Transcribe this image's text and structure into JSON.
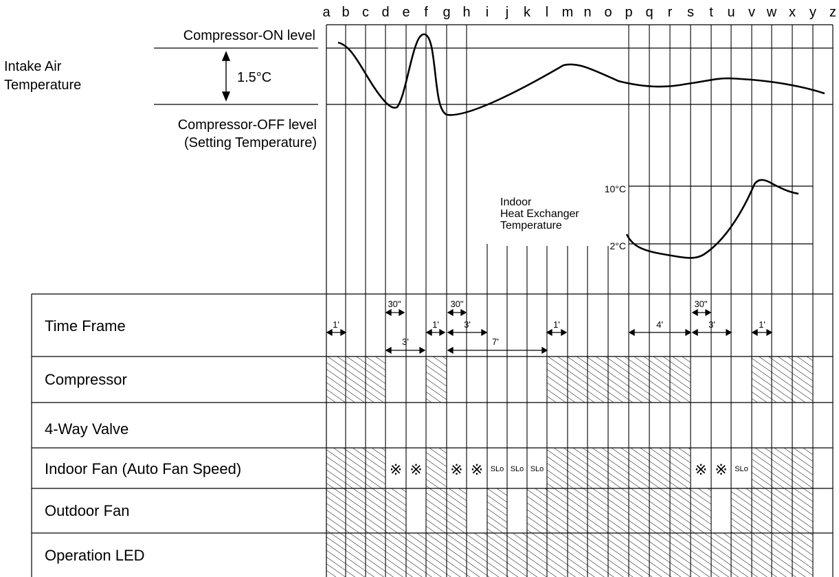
{
  "columns": [
    "a",
    "b",
    "c",
    "d",
    "e",
    "f",
    "g",
    "h",
    "i",
    "j",
    "k",
    "l",
    "m",
    "n",
    "o",
    "p",
    "q",
    "r",
    "s",
    "t",
    "u",
    "v",
    "w",
    "x",
    "y",
    "z"
  ],
  "intake": {
    "title_line1": "Intake Air",
    "title_line2": "Temperature",
    "on_level": "Compressor-ON level",
    "delta": "1.5°C",
    "off_level_line1": "Compressor-OFF level",
    "off_level_line2": "(Setting Temperature)"
  },
  "heat_exchanger": {
    "line1": "Indoor",
    "line2": "Heat Exchanger",
    "line3": "Temperature",
    "high": "10°C",
    "low": "2°C"
  },
  "rows": {
    "time_frame": "Time Frame",
    "compressor": "Compressor",
    "four_way_valve": "4-Way Valve",
    "indoor_fan": "Indoor Fan (Auto Fan Speed)",
    "outdoor_fan": "Outdoor Fan",
    "operation_led": "Operation LED"
  },
  "time_labels": {
    "t1": "1'",
    "t2": "30\"",
    "t3": "3'",
    "t4": "1'",
    "t5": "30\"",
    "t6": "3'",
    "t7": "7'",
    "t8": "1'",
    "t9": "4'",
    "t10": "30\"",
    "t11": "3'",
    "t12": "1'"
  },
  "fan_marks": {
    "star": "※",
    "slo": "SLo"
  },
  "states": {
    "compressor": [
      1,
      1,
      1,
      0,
      0,
      1,
      0,
      0,
      0,
      0,
      0,
      1,
      1,
      1,
      1,
      1,
      1,
      1,
      0,
      0,
      0,
      1,
      1,
      1
    ],
    "four_way_valve": [
      0,
      0,
      0,
      0,
      0,
      0,
      0,
      0,
      0,
      0,
      0,
      0,
      0,
      0,
      0,
      0,
      0,
      0,
      0,
      0,
      0,
      0,
      0,
      0
    ],
    "indoor_fan": [
      1,
      1,
      1,
      0,
      0,
      1,
      0,
      0,
      0,
      0,
      0,
      1,
      1,
      1,
      1,
      1,
      1,
      1,
      0,
      0,
      0,
      1,
      1,
      1
    ],
    "outdoor_fan": [
      1,
      1,
      1,
      1,
      0,
      1,
      1,
      0,
      1,
      0,
      1,
      1,
      1,
      1,
      1,
      1,
      1,
      1,
      1,
      0,
      1,
      1,
      1,
      1
    ],
    "operation_led": [
      1,
      1,
      1,
      1,
      1,
      1,
      1,
      1,
      1,
      1,
      1,
      1,
      1,
      1,
      1,
      1,
      1,
      1,
      1,
      1,
      1,
      1,
      1,
      1
    ]
  }
}
